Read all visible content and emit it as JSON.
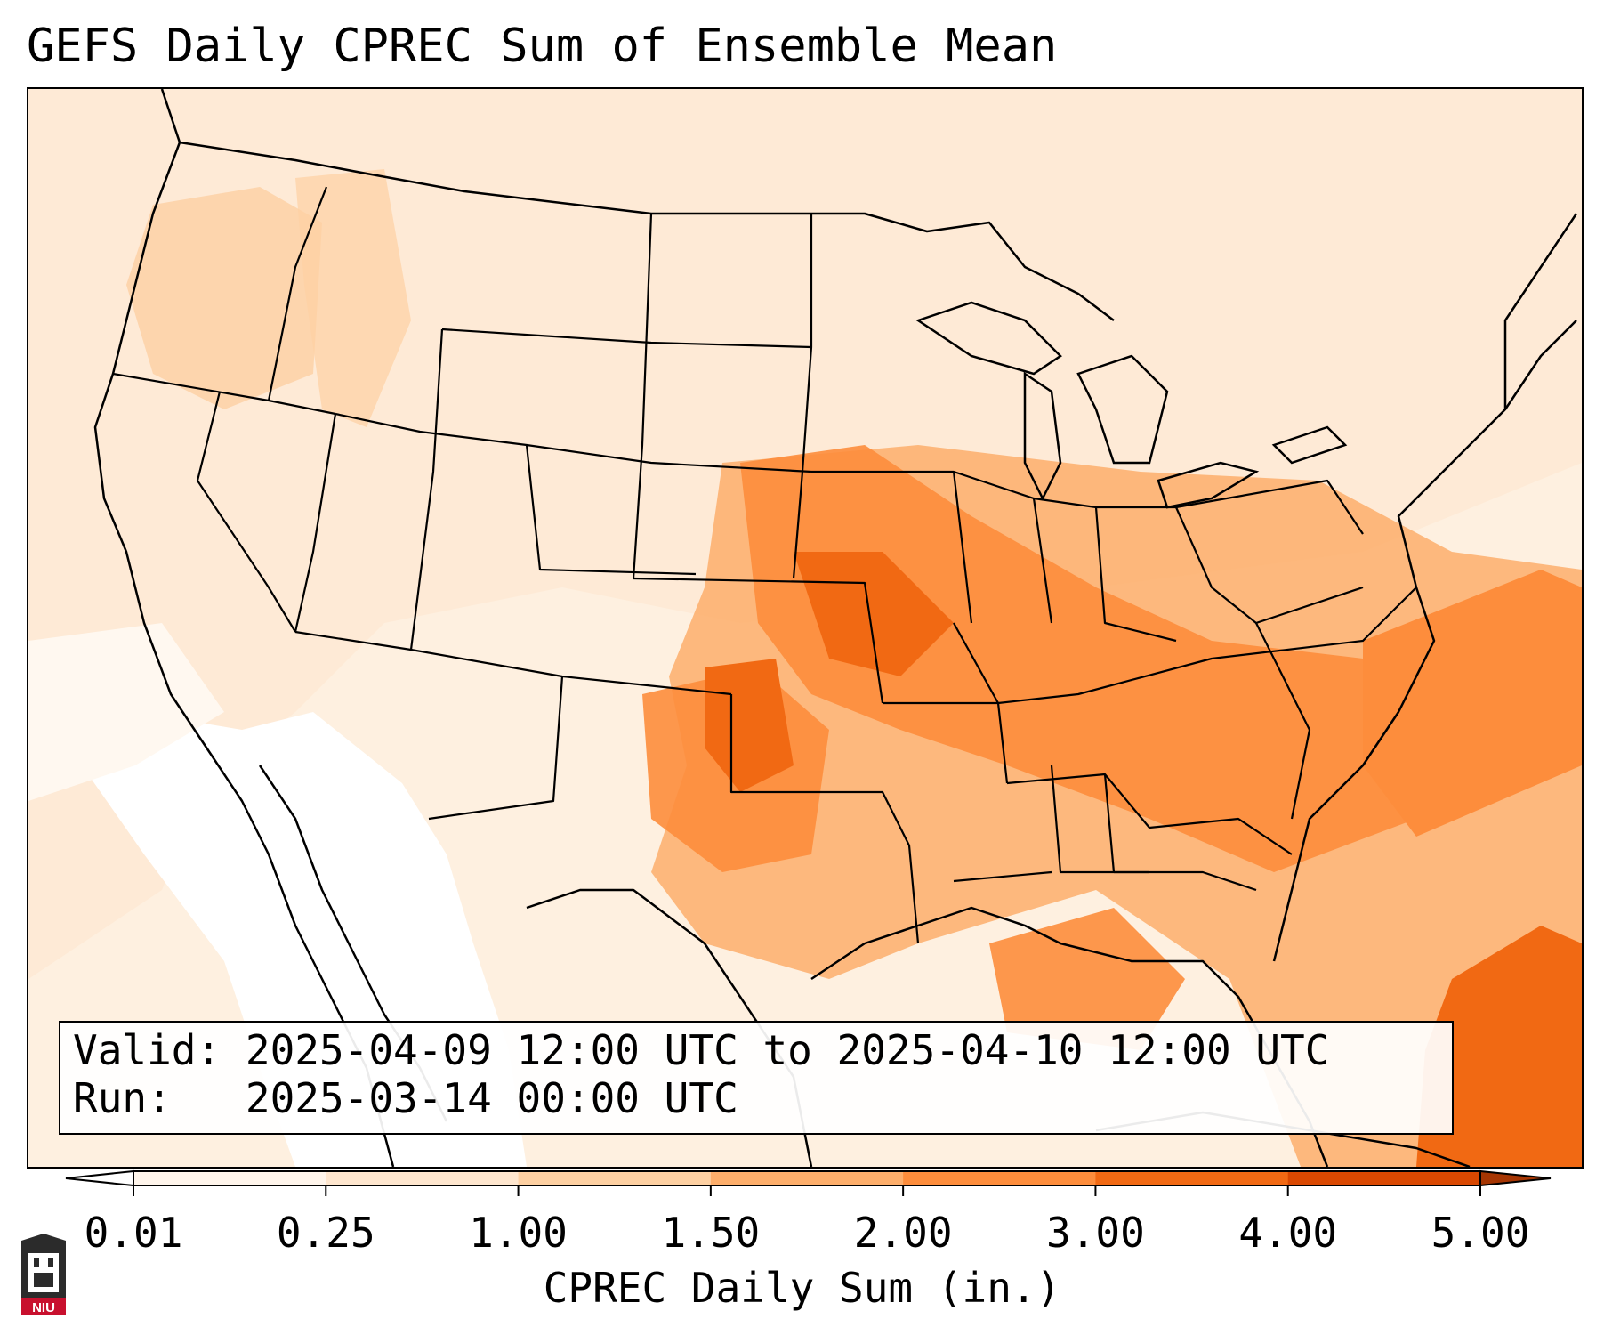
{
  "title": "GEFS Daily CPREC Sum of Ensemble Mean",
  "info": {
    "valid_label": "Valid:",
    "valid_value": "2025-04-09 12:00 UTC to 2025-04-10 12:00 UTC",
    "run_label": "Run:",
    "run_value": "2025-03-14 00:00 UTC"
  },
  "colorbar": {
    "label": "CPREC Daily Sum (in.)",
    "ticks": [
      "0.01",
      "0.25",
      "1.00",
      "1.50",
      "2.00",
      "3.00",
      "4.00",
      "5.00"
    ],
    "colors": [
      "#fff5eb",
      "#fee6ce",
      "#fdd0a2",
      "#fdae6b",
      "#fd8d3c",
      "#f16913",
      "#d94801"
    ],
    "under_color": "#ffffff",
    "over_color": "#a63603"
  },
  "logo": {
    "text": "NIU",
    "color": "#c8102e"
  }
}
